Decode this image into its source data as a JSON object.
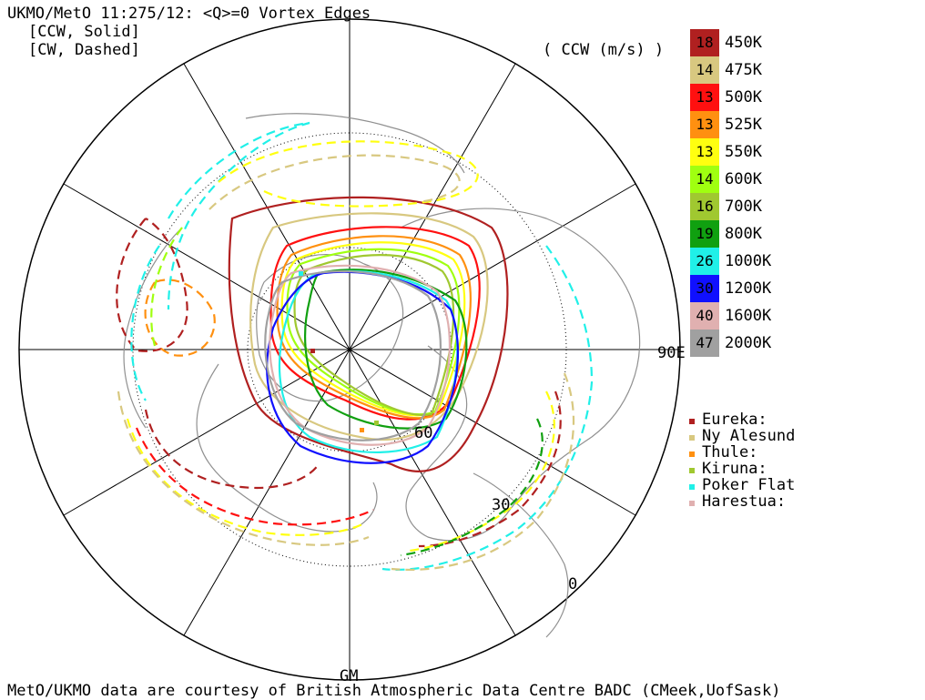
{
  "header": {
    "title": "UKMO/MetO 11:275/12: <Q>=0 Vortex Edges",
    "line2": "[CCW, Solid]",
    "line3": "[CW, Dashed]",
    "units": "( CCW (m/s) )"
  },
  "footer": "MetO/UKMO data are courtesy of British Atmospheric Data Centre BADC (CMeek,UofSask)",
  "map": {
    "labels": {
      "east": "90E",
      "gm": "GM",
      "lat60": "60",
      "lat30": "30",
      "lat0": "0"
    }
  },
  "legend": [
    {
      "value": "18",
      "level": "450K",
      "color": "#b02020"
    },
    {
      "value": "14",
      "level": "475K",
      "color": "#d8c880"
    },
    {
      "value": "13",
      "level": "500K",
      "color": "#ff1010"
    },
    {
      "value": "13",
      "level": "525K",
      "color": "#ff9010"
    },
    {
      "value": "13",
      "level": "550K",
      "color": "#ffff10"
    },
    {
      "value": "14",
      "level": "600K",
      "color": "#a0ff10"
    },
    {
      "value": "16",
      "level": "700K",
      "color": "#a0c830"
    },
    {
      "value": "19",
      "level": "800K",
      "color": "#10a010"
    },
    {
      "value": "26",
      "level": "1000K",
      "color": "#20f0e8"
    },
    {
      "value": "30",
      "level": "1200K",
      "color": "#1010ff"
    },
    {
      "value": "40",
      "level": "1600K",
      "color": "#e0b0b0"
    },
    {
      "value": "47",
      "level": "2000K",
      "color": "#a0a0a0"
    }
  ],
  "stations": [
    {
      "name": "Eureka:",
      "color": "#b02020"
    },
    {
      "name": "Ny Alesund",
      "color": "#d8c880"
    },
    {
      "name": "Thule:",
      "color": "#ff9010"
    },
    {
      "name": "Kiruna:",
      "color": "#a0c830"
    },
    {
      "name": "Poker Flat",
      "color": "#20f0e8"
    },
    {
      "name": "Harestua:",
      "color": "#e0b0b0"
    }
  ]
}
